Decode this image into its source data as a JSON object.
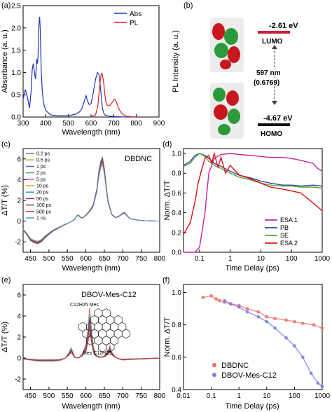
{
  "panels": {
    "a": {
      "letter": "(a)"
    },
    "b": {
      "letter": "(b)",
      "lumo_energy": "-2.61 eV",
      "lumo_label": "LUMO",
      "homo_energy": "-4.67 eV",
      "homo_label": "HOMO",
      "gap_wavelength": "597 nm",
      "gap_value": "(0.6769)"
    },
    "c": {
      "letter": "(c)"
    },
    "d": {
      "letter": "(d)"
    },
    "e": {
      "letter": "(e)",
      "structure_top": "C12H25 Mes",
      "structure_bottom": "Mes C12H25"
    },
    "f": {
      "letter": "(f)"
    }
  },
  "chart_data": [
    {
      "id": "a",
      "type": "line",
      "xlabel": "Wavelength (nm)",
      "ylabel": "Absorbance (a. u.)",
      "ylabel_right": "PL Intensity (a. u.)",
      "xlim": [
        300,
        900
      ],
      "ylim": [
        0,
        2.5
      ],
      "xticks": [
        300,
        400,
        500,
        600,
        700,
        800,
        900
      ],
      "yticks": [
        0.0,
        0.5,
        1.0,
        1.5,
        2.0,
        2.5
      ],
      "legend_position": "top-right",
      "series": [
        {
          "name": "Abs",
          "color": "#2233bb",
          "x": [
            300,
            310,
            320,
            328,
            335,
            340,
            345,
            350,
            355,
            360,
            363,
            366,
            370,
            373,
            376,
            380,
            385,
            390,
            400,
            420,
            450,
            500,
            530,
            550,
            560,
            570,
            578,
            585,
            592,
            600,
            610,
            620,
            628,
            635,
            640,
            645,
            650,
            655,
            660,
            670,
            680,
            700,
            750,
            800
          ],
          "y": [
            0.4,
            0.62,
            0.42,
            0.2,
            0.55,
            1.05,
            1.2,
            1.0,
            0.85,
            1.3,
            1.2,
            1.35,
            2.1,
            2.25,
            1.9,
            1.0,
            0.55,
            0.32,
            0.15,
            0.05,
            0.03,
            0.03,
            0.06,
            0.12,
            0.2,
            0.35,
            0.48,
            0.35,
            0.28,
            0.3,
            0.55,
            0.85,
            1.0,
            0.95,
            0.75,
            0.45,
            0.2,
            0.1,
            0.05,
            0.03,
            0.02,
            0.01,
            0.0,
            0.0
          ]
        },
        {
          "name": "PL",
          "color": "#dd2222",
          "x": [
            600,
            620,
            630,
            638,
            645,
            650,
            655,
            660,
            665,
            670,
            680,
            690,
            700,
            705,
            710,
            720,
            730,
            740,
            750,
            760,
            780,
            800
          ],
          "y": [
            0.0,
            0.05,
            0.25,
            0.7,
            0.98,
            0.95,
            0.8,
            0.55,
            0.35,
            0.27,
            0.25,
            0.3,
            0.38,
            0.4,
            0.36,
            0.22,
            0.12,
            0.06,
            0.03,
            0.015,
            0.005,
            0.0
          ]
        }
      ]
    },
    {
      "id": "c",
      "type": "line",
      "annotation": "DBDNC",
      "xlabel": "Wavelength (nm)",
      "ylabel": "ΔT/T (%)",
      "xlim": [
        430,
        800
      ],
      "ylim": [
        -3,
        7
      ],
      "xticks": [
        450,
        500,
        550,
        600,
        650,
        700,
        750,
        800
      ],
      "yticks": [
        -2,
        0,
        2,
        4,
        6
      ],
      "legend_position": "top-left",
      "base_x": [
        430,
        440,
        450,
        460,
        470,
        480,
        490,
        500,
        510,
        520,
        530,
        540,
        550,
        560,
        570,
        575,
        580,
        585,
        590,
        600,
        610,
        620,
        630,
        635,
        640,
        645,
        650,
        655,
        660,
        670,
        680,
        690,
        700,
        705,
        710,
        720,
        740,
        760,
        780,
        800
      ],
      "base_y": [
        -0.9,
        -1.3,
        -1.9,
        -2.1,
        -2.2,
        -2.0,
        -1.6,
        -1.3,
        -1.0,
        -0.8,
        -0.6,
        -0.4,
        -0.25,
        -0.05,
        0.2,
        0.5,
        0.6,
        0.4,
        0.3,
        0.6,
        1.0,
        1.6,
        3.2,
        4.8,
        5.8,
        6.2,
        5.2,
        3.5,
        2.0,
        0.7,
        0.35,
        0.5,
        0.8,
        0.85,
        0.6,
        0.25,
        0.1,
        0.05,
        0.02,
        0.0
      ],
      "series": [
        {
          "name": "0.2 ps",
          "color": "#7a7a7a",
          "scale": 0.9
        },
        {
          "name": "0.5 ps",
          "color": "#d2a03c",
          "scale": 0.93
        },
        {
          "name": "1 ps",
          "color": "#4a6fd6",
          "scale": 0.95
        },
        {
          "name": "2 ps",
          "color": "#4caf50",
          "scale": 0.97
        },
        {
          "name": "5 ps",
          "color": "#c040d0",
          "scale": 0.98
        },
        {
          "name": "10 ps",
          "color": "#f0a020",
          "scale": 1.0
        },
        {
          "name": "20 ps",
          "color": "#1a9fbf",
          "scale": 0.99
        },
        {
          "name": "50 ps",
          "color": "#8b2d9e",
          "scale": 0.97
        },
        {
          "name": "100 ps",
          "color": "#7b4a2a",
          "scale": 0.95
        },
        {
          "name": "500 ps",
          "color": "#d04040",
          "scale": 0.92
        },
        {
          "name": "1 ns",
          "color": "#3aa0e0",
          "scale": 0.88
        }
      ]
    },
    {
      "id": "d",
      "type": "line",
      "xlabel": "Time Delay (ps)",
      "ylabel": "Norm. ΔT/T",
      "xscale": "log",
      "xlim": [
        0.03,
        1000
      ],
      "ylim": [
        0.0,
        1.05
      ],
      "xticks": [
        0.1,
        1,
        10,
        100,
        1000
      ],
      "yticks": [
        0.0,
        0.2,
        0.4,
        0.6,
        0.8,
        1.0
      ],
      "legend_position": "bottom-right",
      "series": [
        {
          "name": "ESA 1",
          "color": "#cc2299",
          "x": [
            0.03,
            0.07,
            0.1,
            0.15,
            0.2,
            0.3,
            0.5,
            1,
            2,
            5,
            10,
            20,
            50,
            100,
            200,
            500,
            700,
            1000
          ],
          "y": [
            0.0,
            0.0,
            0.05,
            0.4,
            0.8,
            0.95,
            0.99,
            1.0,
            0.99,
            0.98,
            0.97,
            0.96,
            0.96,
            0.95,
            0.93,
            0.9,
            0.85,
            0.82
          ]
        },
        {
          "name": "PB",
          "color": "#3344aa",
          "x": [
            0.03,
            0.05,
            0.07,
            0.1,
            0.15,
            0.2,
            0.3,
            0.5,
            1,
            2,
            5,
            10,
            20,
            50,
            100,
            200,
            500,
            1000
          ],
          "y": [
            0.88,
            0.92,
            0.98,
            1.0,
            0.98,
            0.95,
            0.9,
            0.87,
            0.82,
            0.78,
            0.75,
            0.72,
            0.7,
            0.68,
            0.68,
            0.67,
            0.68,
            0.67
          ]
        },
        {
          "name": "SE",
          "color": "#55aa33",
          "x": [
            0.03,
            0.05,
            0.07,
            0.1,
            0.15,
            0.2,
            0.3,
            0.5,
            1,
            2,
            5,
            10,
            20,
            50,
            100,
            200,
            500,
            1000
          ],
          "y": [
            0.87,
            0.9,
            0.96,
            1.0,
            0.97,
            0.92,
            0.88,
            0.85,
            0.8,
            0.76,
            0.73,
            0.7,
            0.68,
            0.67,
            0.67,
            0.66,
            0.66,
            0.65
          ]
        },
        {
          "name": "ESA 2",
          "color": "#dd1111",
          "x": [
            0.03,
            0.05,
            0.07,
            0.09,
            0.12,
            0.15,
            0.2,
            0.25,
            0.3,
            0.4,
            0.5,
            0.7,
            1,
            2,
            5,
            10,
            20,
            50,
            100,
            200,
            500,
            1000
          ],
          "y": [
            0.18,
            0.3,
            0.5,
            0.7,
            0.85,
            0.95,
            0.98,
            0.9,
            1.0,
            0.86,
            0.96,
            0.8,
            0.88,
            0.78,
            0.74,
            0.7,
            0.66,
            0.64,
            0.62,
            0.6,
            0.5,
            0.42
          ]
        }
      ]
    },
    {
      "id": "e",
      "type": "line",
      "annotation": "DBOV-Mes-C12",
      "xlabel": "Wavelength (nm)",
      "ylabel": "ΔT/T (%)",
      "xlim": [
        430,
        800
      ],
      "ylim": [
        -3,
        7
      ],
      "xticks": [
        450,
        500,
        550,
        600,
        650,
        700,
        750,
        800
      ],
      "yticks": [
        -2,
        0,
        2,
        4,
        6
      ],
      "base_x": [
        430,
        450,
        470,
        490,
        510,
        530,
        545,
        555,
        560,
        565,
        570,
        580,
        590,
        600,
        605,
        610,
        615,
        620,
        625,
        630,
        640,
        650,
        660,
        665,
        670,
        680,
        690,
        700,
        720,
        750,
        800
      ],
      "base_y": [
        -0.1,
        -0.2,
        -0.3,
        -0.3,
        -0.3,
        -0.25,
        0.0,
        0.6,
        1.0,
        0.6,
        0.1,
        0.0,
        0.4,
        1.3,
        2.6,
        4.8,
        3.0,
        1.2,
        0.5,
        0.2,
        0.1,
        0.2,
        0.7,
        1.2,
        0.6,
        0.1,
        -0.1,
        -0.2,
        -0.15,
        -0.1,
        0.0
      ],
      "scales": [
        0.6,
        0.7,
        0.8,
        0.9,
        1.0,
        0.95,
        0.85,
        0.75,
        0.65,
        0.5
      ],
      "colors": [
        "#7a7a7a",
        "#d2a03c",
        "#4a6fd6",
        "#4caf50",
        "#c040d0",
        "#f0a020",
        "#1a9fbf",
        "#8b2d9e",
        "#7b4a2a",
        "#d04040"
      ]
    },
    {
      "id": "f",
      "type": "scatter",
      "xlabel": "Time Delay (ps)",
      "ylabel": "Norm. ΔT/T",
      "xscale": "log",
      "xlim": [
        0.01,
        1000
      ],
      "ylim": [
        0.4,
        1.05
      ],
      "xticks": [
        0.01,
        0.1,
        1,
        10,
        100,
        1000
      ],
      "yticks": [
        0.4,
        0.6,
        0.8,
        1.0
      ],
      "legend_position": "bottom-left",
      "series": [
        {
          "name": "DBDNC",
          "color": "#ee6a6a",
          "x": [
            0.05,
            0.1,
            0.15,
            0.2,
            0.3,
            0.5,
            1,
            2,
            5,
            10,
            20,
            50,
            100,
            200,
            500,
            1000
          ],
          "y": [
            0.97,
            0.98,
            0.96,
            0.95,
            0.94,
            0.93,
            0.92,
            0.9,
            0.88,
            0.85,
            0.84,
            0.83,
            0.82,
            0.81,
            0.8,
            0.78
          ]
        },
        {
          "name": "DBOV-Mes-C12",
          "color": "#6e7ef0",
          "x": [
            0.3,
            0.5,
            1,
            2,
            5,
            10,
            20,
            50,
            100,
            200,
            400,
            700,
            1000
          ],
          "y": [
            0.95,
            0.93,
            0.91,
            0.88,
            0.85,
            0.82,
            0.78,
            0.72,
            0.67,
            0.6,
            0.5,
            0.44,
            0.42
          ]
        }
      ]
    }
  ]
}
